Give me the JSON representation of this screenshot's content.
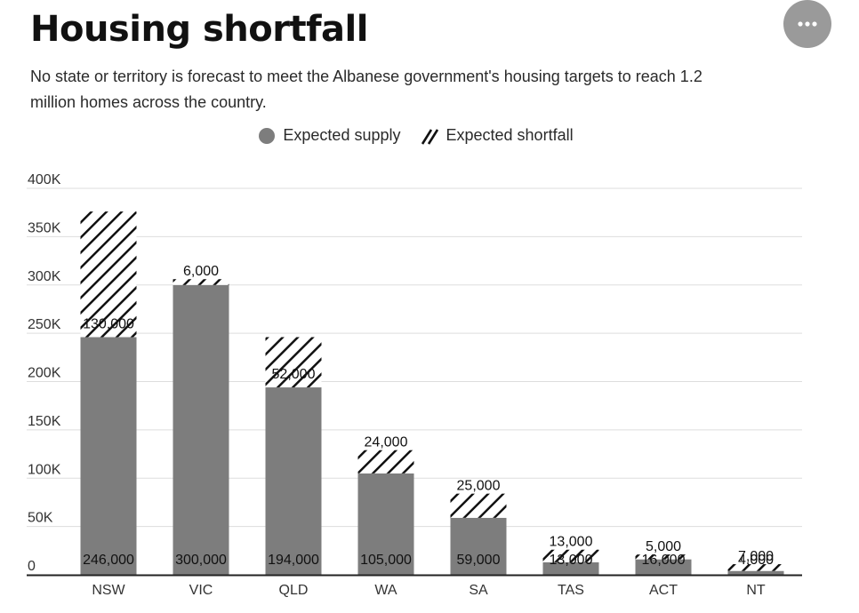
{
  "header": {
    "title": "Housing shortfall",
    "subtitle": "No state or territory is forecast to meet the Albanese government's housing targets to reach 1.2 million homes across the country."
  },
  "menu": {
    "icon": "more-horizontal-icon"
  },
  "legend": {
    "supply_label": "Expected supply",
    "shortfall_label": "Expected shortfall"
  },
  "colors": {
    "supply": "#7d7d7d",
    "shortfall_stripe": "#111111",
    "grid": "#dddddd",
    "menu_button": "#9a9a9a"
  },
  "chart_data": {
    "type": "bar",
    "stacked": true,
    "title": "Housing shortfall",
    "categories": [
      "NSW",
      "VIC",
      "QLD",
      "WA",
      "SA",
      "TAS",
      "ACT",
      "NT"
    ],
    "series": [
      {
        "name": "Expected supply",
        "values": [
          246000,
          300000,
          194000,
          105000,
          59000,
          13000,
          16000,
          4000
        ],
        "labels": [
          "246,000",
          "300,000",
          "194,000",
          "105,000",
          "59,000",
          "13,000",
          "16,000",
          "4,000"
        ]
      },
      {
        "name": "Expected shortfall",
        "values": [
          130000,
          6000,
          52000,
          24000,
          25000,
          13000,
          5000,
          7000
        ],
        "labels": [
          "130,000",
          "6,000",
          "52,000",
          "24,000",
          "25,000",
          "13,000",
          "5,000",
          "7,000"
        ]
      }
    ],
    "yticks": [
      0,
      50000,
      100000,
      150000,
      200000,
      250000,
      300000,
      350000,
      400000
    ],
    "ytick_labels": [
      "0",
      "50K",
      "100K",
      "150K",
      "200K",
      "250K",
      "300K",
      "350K",
      "400K"
    ],
    "ylim": [
      0,
      400000
    ],
    "grid": true,
    "legend_position": "top-center"
  }
}
